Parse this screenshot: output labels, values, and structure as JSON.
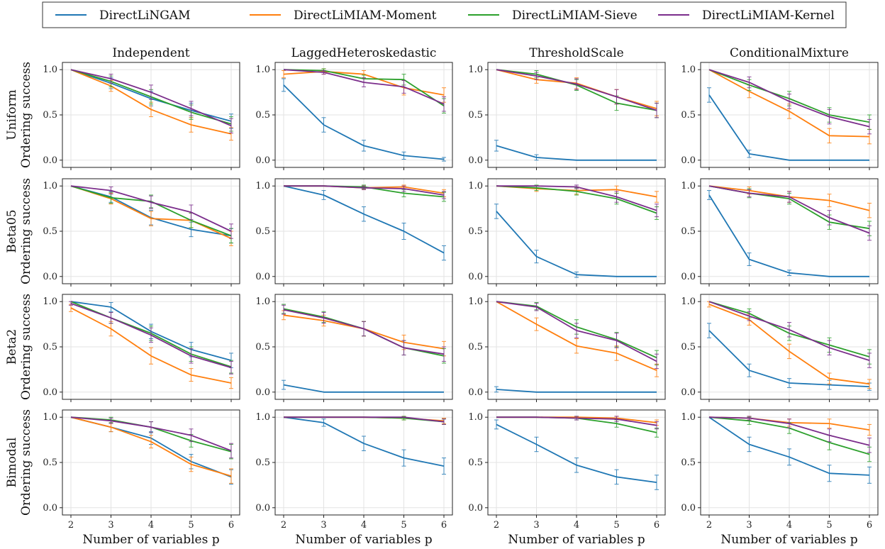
{
  "chart_data": {
    "type": "line",
    "x": [
      2,
      3,
      4,
      5,
      6
    ],
    "xlabel": "Number of variables p",
    "ylabel": "Ordering success",
    "ylim": [
      -0.08,
      1.08
    ],
    "yticks": [
      "0.0",
      "0.5",
      "1.0"
    ],
    "grid": true,
    "legend_position": "top-center",
    "legend": [
      {
        "name": "DirectLiNGAM",
        "color": "#1f77b4"
      },
      {
        "name": "DirectLiMIAM-Moment",
        "color": "#ff7f0e"
      },
      {
        "name": "DirectLiMIAM-Sieve",
        "color": "#2ca02c"
      },
      {
        "name": "DirectLiMIAM-Kernel",
        "color": "#7b2d8b"
      }
    ],
    "columns": [
      "Independent",
      "LaggedHeteroskedastic",
      "ThresholdScale",
      "ConditionalMixture"
    ],
    "rows": [
      "Uniform",
      "Beta05",
      "Beta2",
      "Bimodal"
    ],
    "panels": [
      [
        {
          "series": [
            [
              1.0,
              0.85,
              0.68,
              0.55,
              0.43
            ],
            [
              1.0,
              0.82,
              0.56,
              0.39,
              0.29
            ],
            [
              1.0,
              0.87,
              0.7,
              0.53,
              0.4
            ],
            [
              1.0,
              0.9,
              0.75,
              0.57,
              0.38
            ]
          ],
          "err": [
            [
              0,
              0.06,
              0.08,
              0.08,
              0.08
            ],
            [
              0,
              0.06,
              0.08,
              0.08,
              0.07
            ],
            [
              0,
              0.06,
              0.08,
              0.08,
              0.08
            ],
            [
              0,
              0.05,
              0.08,
              0.08,
              0.08
            ]
          ]
        },
        {
          "series": [
            [
              0.83,
              0.39,
              0.16,
              0.05,
              0.01
            ],
            [
              0.95,
              0.98,
              0.95,
              0.8,
              0.72
            ],
            [
              1.0,
              0.99,
              0.9,
              0.89,
              0.6
            ],
            [
              1.0,
              0.97,
              0.86,
              0.81,
              0.62
            ]
          ],
          "err": [
            [
              0.07,
              0.08,
              0.06,
              0.04,
              0.02
            ],
            [
              0.04,
              0.03,
              0.04,
              0.08,
              0.08
            ],
            [
              0,
              0.02,
              0.04,
              0.06,
              0.08
            ],
            [
              0,
              0.02,
              0.05,
              0.07,
              0.08
            ]
          ]
        },
        {
          "series": [
            [
              0.16,
              0.03,
              0.0,
              0.0,
              0.0
            ],
            [
              1.0,
              0.89,
              0.85,
              0.7,
              0.57
            ],
            [
              1.0,
              0.95,
              0.83,
              0.63,
              0.55
            ],
            [
              1.0,
              0.93,
              0.84,
              0.7,
              0.55
            ]
          ],
          "err": [
            [
              0.06,
              0.03,
              0,
              0,
              0
            ],
            [
              0,
              0.04,
              0.06,
              0.08,
              0.08
            ],
            [
              0,
              0.04,
              0.06,
              0.08,
              0.08
            ],
            [
              0,
              0.04,
              0.06,
              0.08,
              0.08
            ]
          ]
        },
        {
          "series": [
            [
              0.72,
              0.07,
              0.0,
              0.0,
              0.0
            ],
            [
              1.0,
              0.76,
              0.54,
              0.27,
              0.26
            ],
            [
              1.0,
              0.83,
              0.68,
              0.5,
              0.42
            ],
            [
              1.0,
              0.86,
              0.65,
              0.48,
              0.37
            ]
          ],
          "err": [
            [
              0.08,
              0.04,
              0,
              0,
              0
            ],
            [
              0,
              0.07,
              0.08,
              0.08,
              0.08
            ],
            [
              0,
              0.06,
              0.08,
              0.08,
              0.08
            ],
            [
              0,
              0.06,
              0.08,
              0.08,
              0.08
            ]
          ]
        }
      ],
      [
        {
          "series": [
            [
              1.0,
              0.88,
              0.65,
              0.52,
              0.45
            ],
            [
              1.0,
              0.86,
              0.64,
              0.62,
              0.42
            ],
            [
              1.0,
              0.87,
              0.83,
              0.62,
              0.45
            ],
            [
              1.0,
              0.95,
              0.82,
              0.71,
              0.5
            ]
          ],
          "err": [
            [
              0,
              0.06,
              0.08,
              0.08,
              0.08
            ],
            [
              0,
              0.06,
              0.08,
              0.08,
              0.08
            ],
            [
              0,
              0.06,
              0.07,
              0.08,
              0.08
            ],
            [
              0,
              0.04,
              0.07,
              0.08,
              0.08
            ]
          ]
        },
        {
          "series": [
            [
              1.0,
              0.9,
              0.69,
              0.5,
              0.26
            ],
            [
              1.0,
              1.0,
              0.98,
              0.99,
              0.92
            ],
            [
              1.0,
              1.0,
              0.99,
              0.92,
              0.88
            ],
            [
              1.0,
              1.0,
              0.98,
              0.97,
              0.9
            ]
          ],
          "err": [
            [
              0,
              0.05,
              0.08,
              0.09,
              0.08
            ],
            [
              0,
              0,
              0.02,
              0.02,
              0.04
            ],
            [
              0,
              0,
              0.02,
              0.04,
              0.05
            ],
            [
              0,
              0,
              0.02,
              0.03,
              0.04
            ]
          ]
        },
        {
          "series": [
            [
              0.72,
              0.22,
              0.02,
              0.0,
              0.0
            ],
            [
              1.0,
              0.97,
              0.95,
              0.96,
              0.88
            ],
            [
              1.0,
              0.98,
              0.94,
              0.86,
              0.7
            ],
            [
              1.0,
              1.0,
              0.99,
              0.88,
              0.73
            ]
          ],
          "err": [
            [
              0.08,
              0.07,
              0.03,
              0,
              0
            ],
            [
              0,
              0.03,
              0.04,
              0.04,
              0.06
            ],
            [
              0,
              0.03,
              0.04,
              0.06,
              0.07
            ],
            [
              0,
              0,
              0.02,
              0.06,
              0.07
            ]
          ]
        },
        {
          "series": [
            [
              0.9,
              0.19,
              0.04,
              0.0,
              0.0
            ],
            [
              1.0,
              0.95,
              0.88,
              0.84,
              0.73
            ],
            [
              1.0,
              0.92,
              0.86,
              0.6,
              0.53
            ],
            [
              1.0,
              0.92,
              0.88,
              0.65,
              0.48
            ]
          ],
          "err": [
            [
              0.05,
              0.07,
              0.03,
              0,
              0
            ],
            [
              0,
              0.04,
              0.06,
              0.07,
              0.08
            ],
            [
              0,
              0.05,
              0.06,
              0.08,
              0.08
            ],
            [
              0,
              0.04,
              0.06,
              0.08,
              0.08
            ]
          ]
        }
      ],
      [
        {
          "series": [
            [
              1.0,
              0.94,
              0.67,
              0.47,
              0.35
            ],
            [
              0.93,
              0.7,
              0.4,
              0.19,
              0.1
            ],
            [
              1.0,
              0.82,
              0.65,
              0.42,
              0.28
            ],
            [
              0.98,
              0.82,
              0.63,
              0.4,
              0.27
            ]
          ],
          "err": [
            [
              0,
              0.05,
              0.08,
              0.08,
              0.08
            ],
            [
              0.04,
              0.08,
              0.09,
              0.07,
              0.06
            ],
            [
              0,
              0.06,
              0.08,
              0.08,
              0.07
            ],
            [
              0.02,
              0.06,
              0.08,
              0.08,
              0.07
            ]
          ]
        },
        {
          "series": [
            [
              0.08,
              0.0,
              0.0,
              0.0,
              0.0
            ],
            [
              0.85,
              0.79,
              0.7,
              0.55,
              0.48
            ],
            [
              0.92,
              0.83,
              0.7,
              0.49,
              0.4
            ],
            [
              0.91,
              0.82,
              0.7,
              0.49,
              0.42
            ]
          ],
          "err": [
            [
              0.05,
              0,
              0,
              0,
              0
            ],
            [
              0.05,
              0.06,
              0.08,
              0.08,
              0.08
            ],
            [
              0.05,
              0.06,
              0.08,
              0.08,
              0.08
            ],
            [
              0.05,
              0.06,
              0.08,
              0.08,
              0.08
            ]
          ]
        },
        {
          "series": [
            [
              0.03,
              0.0,
              0.0,
              0.0,
              0.0
            ],
            [
              1.0,
              0.75,
              0.51,
              0.43,
              0.24
            ],
            [
              1.0,
              0.95,
              0.72,
              0.58,
              0.38
            ],
            [
              1.0,
              0.94,
              0.68,
              0.57,
              0.34
            ]
          ],
          "err": [
            [
              0.03,
              0,
              0,
              0,
              0
            ],
            [
              0,
              0.07,
              0.08,
              0.08,
              0.07
            ],
            [
              0,
              0.04,
              0.08,
              0.08,
              0.08
            ],
            [
              0,
              0.04,
              0.08,
              0.08,
              0.08
            ]
          ]
        },
        {
          "series": [
            [
              0.68,
              0.24,
              0.1,
              0.08,
              0.06
            ],
            [
              0.97,
              0.8,
              0.45,
              0.15,
              0.09
            ],
            [
              1.0,
              0.87,
              0.65,
              0.52,
              0.39
            ],
            [
              1.0,
              0.84,
              0.69,
              0.49,
              0.35
            ]
          ],
          "err": [
            [
              0.08,
              0.07,
              0.05,
              0.05,
              0.04
            ],
            [
              0.03,
              0.06,
              0.08,
              0.06,
              0.05
            ],
            [
              0,
              0.05,
              0.08,
              0.08,
              0.08
            ],
            [
              0,
              0.05,
              0.08,
              0.08,
              0.08
            ]
          ]
        }
      ],
      [
        {
          "series": [
            [
              1.0,
              0.89,
              0.77,
              0.51,
              0.34
            ],
            [
              1.0,
              0.89,
              0.73,
              0.48,
              0.35
            ],
            [
              1.0,
              0.97,
              0.89,
              0.74,
              0.62
            ],
            [
              1.0,
              0.96,
              0.89,
              0.8,
              0.63
            ]
          ],
          "err": [
            [
              0,
              0.05,
              0.07,
              0.08,
              0.08
            ],
            [
              0,
              0.05,
              0.07,
              0.08,
              0.08
            ],
            [
              0,
              0.03,
              0.06,
              0.07,
              0.08
            ],
            [
              0,
              0.03,
              0.06,
              0.07,
              0.08
            ]
          ]
        },
        {
          "series": [
            [
              1.0,
              0.94,
              0.71,
              0.55,
              0.46
            ],
            [
              1.0,
              1.0,
              1.0,
              0.99,
              0.96
            ],
            [
              1.0,
              1.0,
              1.0,
              0.99,
              0.95
            ],
            [
              1.0,
              1.0,
              1.0,
              1.0,
              0.95
            ]
          ],
          "err": [
            [
              0,
              0.04,
              0.08,
              0.09,
              0.09
            ],
            [
              0,
              0,
              0,
              0.02,
              0.03
            ],
            [
              0,
              0,
              0,
              0.02,
              0.03
            ],
            [
              0,
              0,
              0,
              0,
              0.03
            ]
          ]
        },
        {
          "series": [
            [
              0.92,
              0.7,
              0.47,
              0.34,
              0.28
            ],
            [
              1.0,
              1.0,
              1.0,
              0.99,
              0.94
            ],
            [
              1.0,
              1.0,
              0.99,
              0.93,
              0.83
            ],
            [
              1.0,
              1.0,
              0.99,
              0.98,
              0.91
            ]
          ],
          "err": [
            [
              0.05,
              0.08,
              0.08,
              0.08,
              0.08
            ],
            [
              0,
              0,
              0,
              0.02,
              0.03
            ],
            [
              0,
              0,
              0.02,
              0.04,
              0.05
            ],
            [
              0,
              0,
              0.02,
              0.03,
              0.04
            ]
          ]
        },
        {
          "series": [
            [
              1.0,
              0.7,
              0.56,
              0.38,
              0.36
            ],
            [
              1.0,
              0.99,
              0.94,
              0.93,
              0.86
            ],
            [
              1.0,
              0.96,
              0.88,
              0.72,
              0.59
            ],
            [
              1.0,
              0.99,
              0.93,
              0.8,
              0.69
            ]
          ],
          "err": [
            [
              0,
              0.08,
              0.09,
              0.09,
              0.09
            ],
            [
              0,
              0.02,
              0.04,
              0.05,
              0.06
            ],
            [
              0,
              0.04,
              0.06,
              0.08,
              0.08
            ],
            [
              0,
              0.02,
              0.05,
              0.07,
              0.08
            ]
          ]
        }
      ]
    ]
  }
}
